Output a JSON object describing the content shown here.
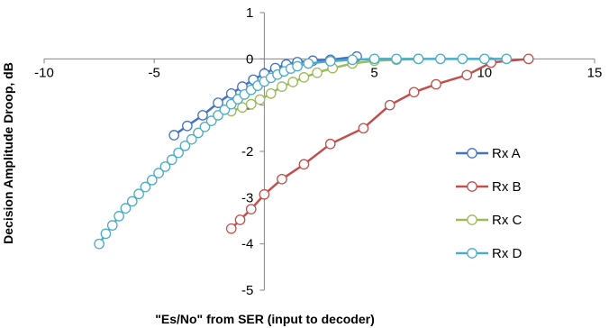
{
  "chart_data": {
    "type": "scatter",
    "title": "",
    "xlabel": "\"Es/No\" from SER (input to decoder)",
    "ylabel": "Decision Amplitude Droop, dB",
    "xlim": [
      -10,
      15
    ],
    "ylim": [
      -5,
      1
    ],
    "xticks": [
      "-10",
      "-5",
      "0",
      "5",
      "10",
      "15"
    ],
    "yticks": [
      "1",
      "0",
      "-1",
      "-2",
      "-3",
      "-4",
      "-5"
    ],
    "grid": false,
    "legend_position": "right",
    "series": [
      {
        "name": "Rx A",
        "color": "#4472C4",
        "x": [
          -4.1,
          -3.5,
          -2.8,
          -2.1,
          -1.5,
          -1.0,
          -0.5,
          0.0,
          0.5,
          1.0,
          1.5,
          2.2,
          3.0,
          4.2
        ],
        "y": [
          -1.65,
          -1.45,
          -1.22,
          -0.95,
          -0.75,
          -0.6,
          -0.45,
          -0.32,
          -0.2,
          -0.12,
          -0.07,
          -0.04,
          -0.02,
          0.05
        ]
      },
      {
        "name": "Rx B",
        "color": "#C0504D",
        "x": [
          -1.5,
          -1.1,
          -0.6,
          0.0,
          0.8,
          1.8,
          3.0,
          4.5,
          5.7,
          6.8,
          7.8,
          9.2,
          10.3,
          12.0
        ],
        "y": [
          -3.67,
          -3.48,
          -3.25,
          -2.93,
          -2.6,
          -2.28,
          -1.84,
          -1.5,
          -1.0,
          -0.72,
          -0.55,
          -0.35,
          -0.08,
          0.0
        ]
      },
      {
        "name": "Rx C",
        "color": "#9BBB59",
        "x": [
          -1.5,
          -1.0,
          -0.6,
          -0.2,
          0.3,
          0.8,
          1.3,
          1.8,
          2.4,
          3.1,
          4.0,
          5.0,
          6.0,
          7.0
        ],
        "y": [
          -1.13,
          -1.05,
          -0.98,
          -0.88,
          -0.75,
          -0.6,
          -0.5,
          -0.4,
          -0.3,
          -0.2,
          -0.1,
          -0.04,
          -0.02,
          0.0
        ]
      },
      {
        "name": "Rx D",
        "color": "#4BACC6",
        "x": [
          -7.5,
          -7.2,
          -6.9,
          -6.6,
          -6.3,
          -6.0,
          -5.7,
          -5.4,
          -5.1,
          -4.8,
          -4.5,
          -4.2,
          -3.9,
          -3.6,
          -3.3,
          -3.0,
          -2.7,
          -2.4,
          -2.1,
          -1.8,
          -1.5,
          -1.2,
          -0.9,
          -0.6,
          -0.3,
          0.0,
          0.3,
          0.6,
          0.9,
          1.2,
          1.5,
          2.0,
          3.0,
          4.0,
          5.0,
          6.0,
          7.0,
          8.0,
          9.0,
          10.0,
          11.0
        ],
        "y": [
          -4.0,
          -3.78,
          -3.6,
          -3.4,
          -3.23,
          -3.08,
          -2.92,
          -2.77,
          -2.62,
          -2.47,
          -2.33,
          -2.18,
          -2.03,
          -1.88,
          -1.74,
          -1.6,
          -1.47,
          -1.34,
          -1.22,
          -1.1,
          -0.98,
          -0.87,
          -0.77,
          -0.67,
          -0.58,
          -0.49,
          -0.41,
          -0.34,
          -0.27,
          -0.21,
          -0.16,
          -0.1,
          -0.05,
          -0.02,
          0.0,
          0.0,
          0.0,
          0.0,
          0.0,
          0.0,
          0.0
        ]
      }
    ]
  }
}
